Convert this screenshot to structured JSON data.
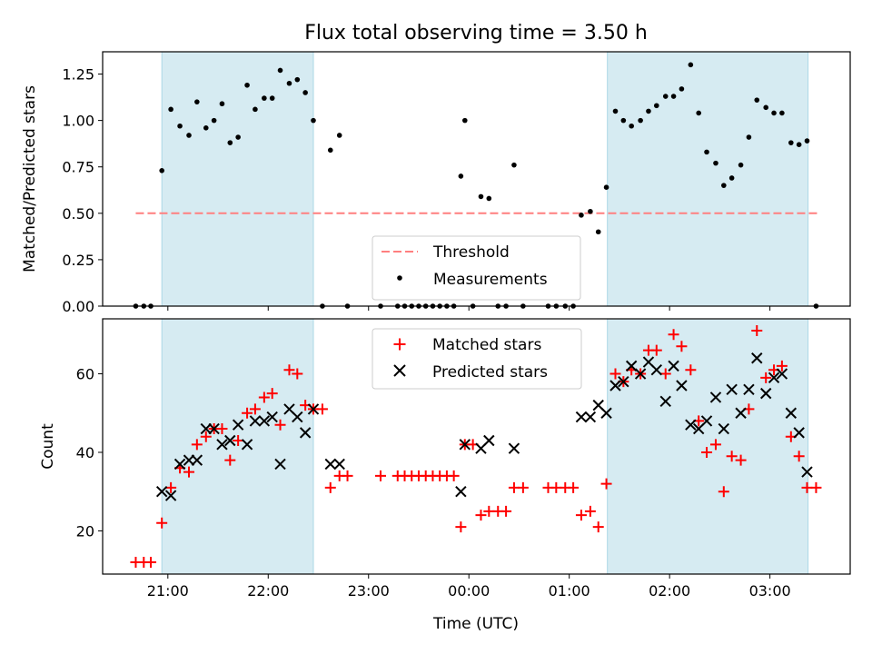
{
  "chart_data": {
    "type": "scatter",
    "title": "Flux total observing time = 3.50 h",
    "xlabel": "Time (UTC)",
    "x_unit": "hours after 21:00 UTC",
    "x_ticks": [
      {
        "x": 0,
        "label": "21:00"
      },
      {
        "x": 1,
        "label": "22:00"
      },
      {
        "x": 2,
        "label": "23:00"
      },
      {
        "x": 3,
        "label": "00:00"
      },
      {
        "x": 4,
        "label": "01:00"
      },
      {
        "x": 5,
        "label": "02:00"
      },
      {
        "x": 6,
        "label": "03:00"
      }
    ],
    "xlim": [
      -0.65,
      6.8
    ],
    "shaded_intervals": [
      [
        -0.06,
        1.45
      ],
      [
        4.38,
        6.38
      ]
    ],
    "shade_color": "#add8e6",
    "panels": [
      {
        "id": "ratio",
        "ylabel": "Matched/Predicted stars",
        "ylim": [
          0,
          1.37
        ],
        "y_ticks": [
          {
            "y": 0,
            "label": "0.00"
          },
          {
            "y": 0.25,
            "label": "0.25"
          },
          {
            "y": 0.5,
            "label": "0.50"
          },
          {
            "y": 0.75,
            "label": "0.75"
          },
          {
            "y": 1.0,
            "label": "1.00"
          },
          {
            "y": 1.25,
            "label": "1.25"
          }
        ],
        "threshold": {
          "y": 0.5,
          "x_range": [
            -0.32,
            6.5
          ],
          "color": "#ff7f7f",
          "legend": "Threshold"
        },
        "measurements": {
          "legend": "Measurements",
          "color": "#000000",
          "points": [
            [
              -0.32,
              0.0
            ],
            [
              -0.24,
              0.0
            ],
            [
              -0.17,
              0.0
            ],
            [
              -0.06,
              0.73
            ],
            [
              0.03,
              1.06
            ],
            [
              0.12,
              0.97
            ],
            [
              0.21,
              0.92
            ],
            [
              0.29,
              1.1
            ],
            [
              0.38,
              0.96
            ],
            [
              0.46,
              1.0
            ],
            [
              0.54,
              1.09
            ],
            [
              0.62,
              0.88
            ],
            [
              0.7,
              0.91
            ],
            [
              0.79,
              1.19
            ],
            [
              0.87,
              1.06
            ],
            [
              0.96,
              1.12
            ],
            [
              1.04,
              1.12
            ],
            [
              1.12,
              1.27
            ],
            [
              1.21,
              1.2
            ],
            [
              1.29,
              1.22
            ],
            [
              1.37,
              1.15
            ],
            [
              1.45,
              1.0
            ],
            [
              1.54,
              0.0
            ],
            [
              1.62,
              0.84
            ],
            [
              1.71,
              0.92
            ],
            [
              1.79,
              0.0
            ],
            [
              2.12,
              0.0
            ],
            [
              2.29,
              0.0
            ],
            [
              2.36,
              0.0
            ],
            [
              2.43,
              0.0
            ],
            [
              2.5,
              0.0
            ],
            [
              2.57,
              0.0
            ],
            [
              2.64,
              0.0
            ],
            [
              2.71,
              0.0
            ],
            [
              2.78,
              0.0
            ],
            [
              2.85,
              0.0
            ],
            [
              2.92,
              0.7
            ],
            [
              2.96,
              1.0
            ],
            [
              3.04,
              0.0
            ],
            [
              3.12,
              0.59
            ],
            [
              3.2,
              0.58
            ],
            [
              3.29,
              0.0
            ],
            [
              3.37,
              0.0
            ],
            [
              3.45,
              0.76
            ],
            [
              3.54,
              0.0
            ],
            [
              3.79,
              0.0
            ],
            [
              3.87,
              0.0
            ],
            [
              3.96,
              0.0
            ],
            [
              4.04,
              0.0
            ],
            [
              4.12,
              0.49
            ],
            [
              4.21,
              0.51
            ],
            [
              4.29,
              0.4
            ],
            [
              4.37,
              0.64
            ],
            [
              4.46,
              1.05
            ],
            [
              4.54,
              1.0
            ],
            [
              4.62,
              0.97
            ],
            [
              4.71,
              1.0
            ],
            [
              4.79,
              1.05
            ],
            [
              4.87,
              1.08
            ],
            [
              4.96,
              1.13
            ],
            [
              5.04,
              1.13
            ],
            [
              5.12,
              1.17
            ],
            [
              5.21,
              1.3
            ],
            [
              5.29,
              1.04
            ],
            [
              5.37,
              0.83
            ],
            [
              5.46,
              0.77
            ],
            [
              5.54,
              0.65
            ],
            [
              5.62,
              0.69
            ],
            [
              5.71,
              0.76
            ],
            [
              5.79,
              0.91
            ],
            [
              5.87,
              1.11
            ],
            [
              5.96,
              1.07
            ],
            [
              6.04,
              1.04
            ],
            [
              6.12,
              1.04
            ],
            [
              6.21,
              0.88
            ],
            [
              6.29,
              0.87
            ],
            [
              6.37,
              0.89
            ],
            [
              6.46,
              0.0
            ]
          ]
        }
      },
      {
        "id": "counts",
        "ylabel": "Count",
        "ylim": [
          9,
          74
        ],
        "y_ticks": [
          {
            "y": 20,
            "label": "20"
          },
          {
            "y": 40,
            "label": "40"
          },
          {
            "y": 60,
            "label": "60"
          }
        ],
        "series": [
          {
            "name": "Matched stars",
            "marker": "plus",
            "color": "#ff0000",
            "points": [
              [
                -0.32,
                12
              ],
              [
                -0.24,
                12
              ],
              [
                -0.17,
                12
              ],
              [
                -0.06,
                22
              ],
              [
                0.03,
                31
              ],
              [
                0.12,
                36
              ],
              [
                0.21,
                35
              ],
              [
                0.29,
                42
              ],
              [
                0.38,
                44
              ],
              [
                0.46,
                46
              ],
              [
                0.54,
                46
              ],
              [
                0.62,
                38
              ],
              [
                0.7,
                43
              ],
              [
                0.79,
                50
              ],
              [
                0.87,
                51
              ],
              [
                0.96,
                54
              ],
              [
                1.04,
                55
              ],
              [
                1.12,
                47
              ],
              [
                1.21,
                61
              ],
              [
                1.29,
                60
              ],
              [
                1.37,
                52
              ],
              [
                1.45,
                51
              ],
              [
                1.54,
                51
              ],
              [
                1.62,
                31
              ],
              [
                1.71,
                34
              ],
              [
                1.79,
                34
              ],
              [
                2.12,
                34
              ],
              [
                2.29,
                34
              ],
              [
                2.36,
                34
              ],
              [
                2.43,
                34
              ],
              [
                2.5,
                34
              ],
              [
                2.57,
                34
              ],
              [
                2.64,
                34
              ],
              [
                2.71,
                34
              ],
              [
                2.78,
                34
              ],
              [
                2.85,
                34
              ],
              [
                2.92,
                21
              ],
              [
                2.96,
                42
              ],
              [
                3.04,
                42
              ],
              [
                3.12,
                24
              ],
              [
                3.2,
                25
              ],
              [
                3.29,
                25
              ],
              [
                3.37,
                25
              ],
              [
                3.45,
                31
              ],
              [
                3.54,
                31
              ],
              [
                3.79,
                31
              ],
              [
                3.87,
                31
              ],
              [
                3.96,
                31
              ],
              [
                4.04,
                31
              ],
              [
                4.12,
                24
              ],
              [
                4.21,
                25
              ],
              [
                4.29,
                21
              ],
              [
                4.37,
                32
              ],
              [
                4.46,
                60
              ],
              [
                4.54,
                58
              ],
              [
                4.62,
                61
              ],
              [
                4.71,
                60
              ],
              [
                4.79,
                66
              ],
              [
                4.87,
                66
              ],
              [
                4.96,
                60
              ],
              [
                5.04,
                70
              ],
              [
                5.12,
                67
              ],
              [
                5.21,
                61
              ],
              [
                5.29,
                48
              ],
              [
                5.37,
                40
              ],
              [
                5.46,
                42
              ],
              [
                5.54,
                30
              ],
              [
                5.62,
                39
              ],
              [
                5.71,
                38
              ],
              [
                5.79,
                51
              ],
              [
                5.87,
                71
              ],
              [
                5.96,
                59
              ],
              [
                6.04,
                61
              ],
              [
                6.12,
                62
              ],
              [
                6.21,
                44
              ],
              [
                6.29,
                39
              ],
              [
                6.37,
                31
              ],
              [
                6.46,
                31
              ]
            ]
          },
          {
            "name": "Predicted stars",
            "marker": "x",
            "color": "#000000",
            "points": [
              [
                -0.06,
                30
              ],
              [
                0.03,
                29
              ],
              [
                0.12,
                37
              ],
              [
                0.21,
                38
              ],
              [
                0.29,
                38
              ],
              [
                0.38,
                46
              ],
              [
                0.46,
                46
              ],
              [
                0.54,
                42
              ],
              [
                0.62,
                43
              ],
              [
                0.7,
                47
              ],
              [
                0.79,
                42
              ],
              [
                0.87,
                48
              ],
              [
                0.96,
                48
              ],
              [
                1.04,
                49
              ],
              [
                1.12,
                37
              ],
              [
                1.21,
                51
              ],
              [
                1.29,
                49
              ],
              [
                1.37,
                45
              ],
              [
                1.45,
                51
              ],
              [
                1.62,
                37
              ],
              [
                1.71,
                37
              ],
              [
                2.92,
                30
              ],
              [
                2.96,
                42
              ],
              [
                3.12,
                41
              ],
              [
                3.2,
                43
              ],
              [
                3.45,
                41
              ],
              [
                4.12,
                49
              ],
              [
                4.21,
                49
              ],
              [
                4.29,
                52
              ],
              [
                4.37,
                50
              ],
              [
                4.46,
                57
              ],
              [
                4.54,
                58
              ],
              [
                4.62,
                62
              ],
              [
                4.71,
                60
              ],
              [
                4.79,
                63
              ],
              [
                4.87,
                61
              ],
              [
                4.96,
                53
              ],
              [
                5.04,
                62
              ],
              [
                5.12,
                57
              ],
              [
                5.21,
                47
              ],
              [
                5.29,
                46
              ],
              [
                5.37,
                48
              ],
              [
                5.46,
                54
              ],
              [
                5.54,
                46
              ],
              [
                5.62,
                56
              ],
              [
                5.71,
                50
              ],
              [
                5.79,
                56
              ],
              [
                5.87,
                64
              ],
              [
                5.96,
                55
              ],
              [
                6.04,
                59
              ],
              [
                6.12,
                60
              ],
              [
                6.21,
                50
              ],
              [
                6.29,
                45
              ],
              [
                6.37,
                35
              ]
            ]
          }
        ]
      }
    ]
  }
}
